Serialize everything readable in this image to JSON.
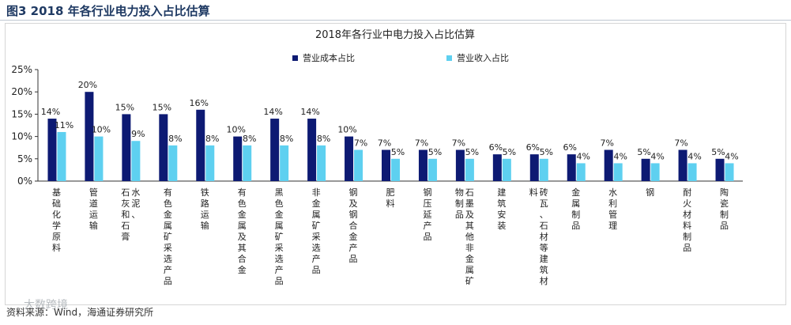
{
  "figure": {
    "title": "图3  2018 年各行业电力投入占比估算",
    "source": "资料来源：Wind，海通证券研究所",
    "watermark": "大数跨境"
  },
  "chart_data": {
    "type": "bar",
    "title": "2018年各行业中电力投入占比估算",
    "xlabel": "",
    "ylabel": "",
    "ylim": [
      0,
      25
    ],
    "yticks": [
      "0%",
      "5%",
      "10%",
      "15%",
      "20%",
      "25%"
    ],
    "legend_position": "top",
    "grid": false,
    "categories": [
      "基础化学原料",
      "管道运输",
      "水泥、石灰和石膏",
      "有色金属矿采选产品",
      "铁路运输",
      "有色金属及其合金",
      "黑色金属矿采选产品",
      "非金属矿采选产品",
      "钢及钢合金产品",
      "肥料",
      "钢压延产品",
      "石墨及其他非金属矿物制品",
      "建筑安装",
      "砖瓦、石材等建筑材料",
      "金属制品",
      "水利管理",
      "钢",
      "耐火材料制品",
      "陶瓷制品"
    ],
    "category_lines": [
      [
        "基础化学原料"
      ],
      [
        "管道运输"
      ],
      [
        "水泥、",
        "石灰和石膏"
      ],
      [
        "有色金属矿采选产品"
      ],
      [
        "铁路运输"
      ],
      [
        "有色金属及其合金"
      ],
      [
        "黑色金属矿采选产品"
      ],
      [
        "非金属矿采选产品"
      ],
      [
        "钢及钢合金产品"
      ],
      [
        "肥料"
      ],
      [
        "钢压延产品"
      ],
      [
        "石墨及其他非金属矿",
        "物制品"
      ],
      [
        "建筑安装"
      ],
      [
        "砖瓦、石材等建筑材",
        "料"
      ],
      [
        "金属制品"
      ],
      [
        "水利管理"
      ],
      [
        "钢"
      ],
      [
        "耐火材料制品"
      ],
      [
        "陶瓷制品"
      ]
    ],
    "series": [
      {
        "name": "营业成本占比",
        "color": "#0d1a73",
        "values": [
          14,
          20,
          15,
          15,
          16,
          10,
          14,
          14,
          10,
          7,
          7,
          7,
          6,
          6,
          6,
          7,
          5,
          7,
          5
        ],
        "labels": [
          "14%",
          "20%",
          "15%",
          "15%",
          "16%",
          "10%",
          "14%",
          "14%",
          "10%",
          "7%",
          "7%",
          "7%",
          "6%",
          "6%",
          "6%",
          "7%",
          "5%",
          "7%",
          "5%"
        ]
      },
      {
        "name": "营业收入占比",
        "color": "#5ed0f0",
        "values": [
          11,
          10,
          9,
          8,
          8,
          8,
          8,
          8,
          7,
          5,
          5,
          5,
          5,
          5,
          4,
          4,
          4,
          4,
          4
        ],
        "labels": [
          "11%",
          "10%",
          "9%",
          "8%",
          "8%",
          "8%",
          "8%",
          "8%",
          "7%",
          "5%",
          "5%",
          "5%",
          "5%",
          "5%",
          "4%",
          "4%",
          "4%",
          "4%",
          "4%"
        ]
      }
    ]
  }
}
